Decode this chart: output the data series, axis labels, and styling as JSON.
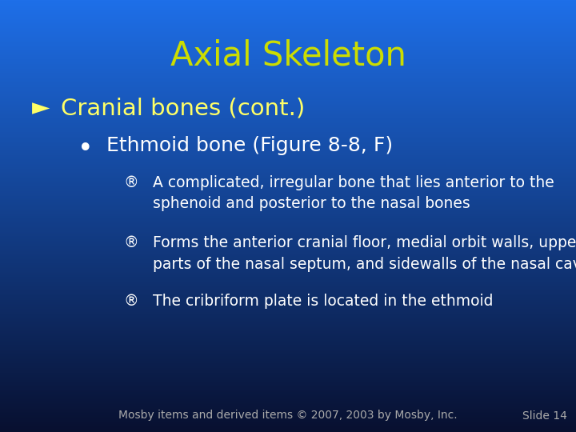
{
  "title": "Axial Skeleton",
  "title_color": "#CCDD00",
  "title_fontsize": 30,
  "bg_color_top": "#1E6FE8",
  "bg_color_bottom": "#081030",
  "level1_bullet": "►",
  "level1_text": "Cranial bones (cont.)",
  "level1_color": "#FFFF66",
  "level1_fontsize": 21,
  "level2_bullet": "•",
  "level2_text": "Ethmoid bone (Figure 8-8, F)",
  "level2_color": "#FFFFFF",
  "level2_fontsize": 18,
  "level3_bullet": "®",
  "level3_items": [
    "A complicated, irregular bone that lies anterior to the\nsphenoid and posterior to the nasal bones",
    "Forms the anterior cranial floor, medial orbit walls, upper\nparts of the nasal septum, and sidewalls of the nasal cavity",
    "The cribriform plate is located in the ethmoid"
  ],
  "level3_color": "#FFFFFF",
  "level3_fontsize": 13.5,
  "footer_text": "Mosby items and derived items © 2007, 2003 by Mosby, Inc.",
  "footer_right": "Slide 14",
  "footer_color": "#AAAAAA",
  "footer_fontsize": 10
}
